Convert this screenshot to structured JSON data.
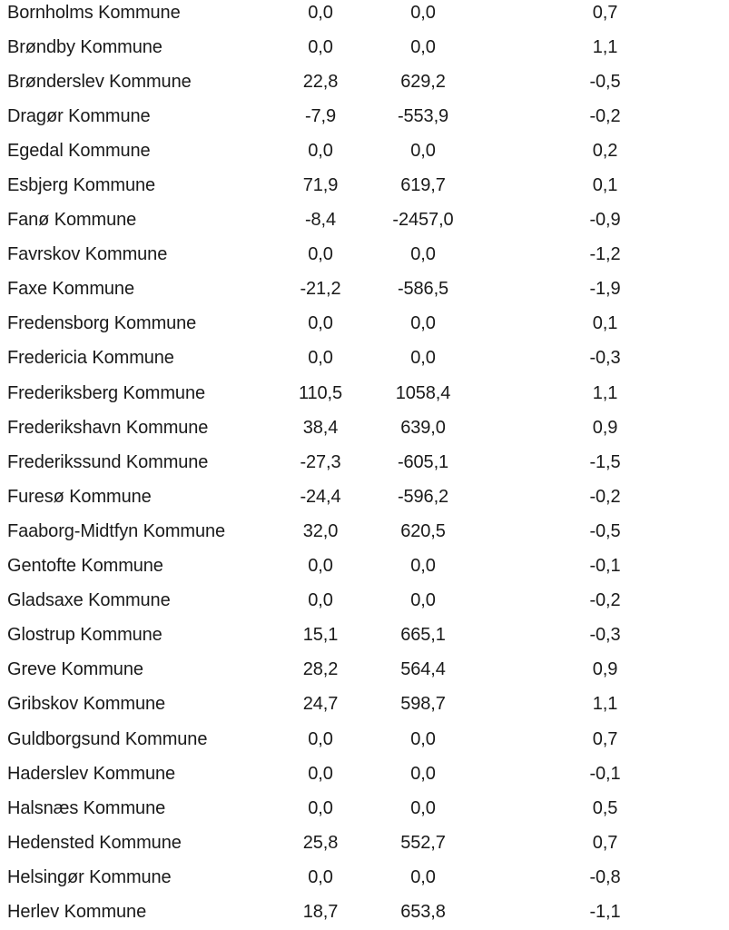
{
  "colors": {
    "text": "#1a1a1a",
    "background": "#ffffff"
  },
  "table": {
    "description": "Cropped document table of Danish municipalities with three numeric value columns (decimal-comma formatting, no visible headers)",
    "columns": [
      "kommune",
      "value_1",
      "value_2",
      "value_3"
    ],
    "rows": [
      {
        "name": "Bornholms Kommune",
        "v1": "0,0",
        "v2": "0,0",
        "v3": "0,7"
      },
      {
        "name": "Brøndby Kommune",
        "v1": "0,0",
        "v2": "0,0",
        "v3": "1,1"
      },
      {
        "name": "Brønderslev Kommune",
        "v1": "22,8",
        "v2": "629,2",
        "v3": "-0,5"
      },
      {
        "name": "Dragør Kommune",
        "v1": "-7,9",
        "v2": "-553,9",
        "v3": "-0,2"
      },
      {
        "name": "Egedal Kommune",
        "v1": "0,0",
        "v2": "0,0",
        "v3": "0,2"
      },
      {
        "name": "Esbjerg Kommune",
        "v1": "71,9",
        "v2": "619,7",
        "v3": "0,1"
      },
      {
        "name": "Fanø Kommune",
        "v1": "-8,4",
        "v2": "-2457,0",
        "v3": "-0,9"
      },
      {
        "name": "Favrskov Kommune",
        "v1": "0,0",
        "v2": "0,0",
        "v3": "-1,2"
      },
      {
        "name": "Faxe Kommune",
        "v1": "-21,2",
        "v2": "-586,5",
        "v3": "-1,9"
      },
      {
        "name": "Fredensborg Kommune",
        "v1": "0,0",
        "v2": "0,0",
        "v3": "0,1"
      },
      {
        "name": "Fredericia Kommune",
        "v1": "0,0",
        "v2": "0,0",
        "v3": "-0,3"
      },
      {
        "name": "Frederiksberg Kommune",
        "v1": "110,5",
        "v2": "1058,4",
        "v3": "1,1"
      },
      {
        "name": "Frederikshavn Kommune",
        "v1": "38,4",
        "v2": "639,0",
        "v3": "0,9"
      },
      {
        "name": "Frederikssund Kommune",
        "v1": "-27,3",
        "v2": "-605,1",
        "v3": "-1,5"
      },
      {
        "name": "Furesø Kommune",
        "v1": "-24,4",
        "v2": "-596,2",
        "v3": "-0,2"
      },
      {
        "name": "Faaborg-Midtfyn Kommune",
        "v1": "32,0",
        "v2": "620,5",
        "v3": "-0,5"
      },
      {
        "name": "Gentofte Kommune",
        "v1": "0,0",
        "v2": "0,0",
        "v3": "-0,1"
      },
      {
        "name": "Gladsaxe Kommune",
        "v1": "0,0",
        "v2": "0,0",
        "v3": "-0,2"
      },
      {
        "name": "Glostrup Kommune",
        "v1": "15,1",
        "v2": "665,1",
        "v3": "-0,3"
      },
      {
        "name": "Greve Kommune",
        "v1": "28,2",
        "v2": "564,4",
        "v3": "0,9"
      },
      {
        "name": "Gribskov Kommune",
        "v1": "24,7",
        "v2": "598,7",
        "v3": "1,1"
      },
      {
        "name": "Guldborgsund Kommune",
        "v1": "0,0",
        "v2": "0,0",
        "v3": "0,7"
      },
      {
        "name": "Haderslev Kommune",
        "v1": "0,0",
        "v2": "0,0",
        "v3": "-0,1"
      },
      {
        "name": "Halsnæs Kommune",
        "v1": "0,0",
        "v2": "0,0",
        "v3": "0,5"
      },
      {
        "name": "Hedensted Kommune",
        "v1": "25,8",
        "v2": "552,7",
        "v3": "0,7"
      },
      {
        "name": "Helsingør Kommune",
        "v1": "0,0",
        "v2": "0,0",
        "v3": "-0,8"
      },
      {
        "name": "Herlev Kommune",
        "v1": "18,7",
        "v2": "653,8",
        "v3": "-1,1"
      }
    ]
  }
}
